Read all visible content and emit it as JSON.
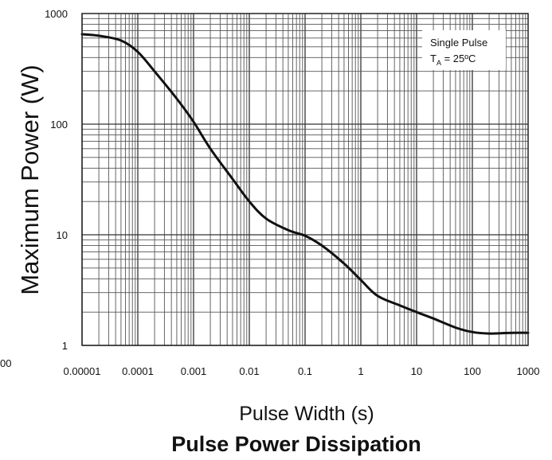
{
  "chart_data": {
    "type": "line",
    "title": "Pulse Power Dissipation",
    "xlabel": "Pulse Width (s)",
    "ylabel": "Maximum Power (W)",
    "x_scale": "log",
    "y_scale": "log",
    "xlim": [
      1e-05,
      1000
    ],
    "ylim": [
      1,
      1000
    ],
    "grid": true,
    "x_tick_labels": [
      "0.00001",
      "0.0001",
      "0.001",
      "0.01",
      "0.1",
      "1",
      "10",
      "100",
      "1000"
    ],
    "y_tick_labels": [
      "1",
      "10",
      "100",
      "1000"
    ],
    "edge_label_left": "00",
    "annotation": {
      "line1": "Single Pulse",
      "line2_main": "T",
      "line2_sub": "A",
      "line2_rest": " = 25ºC"
    },
    "series": [
      {
        "color": "#111111",
        "x": [
          1e-05,
          2e-05,
          5e-05,
          0.0001,
          0.0002,
          0.0005,
          0.001,
          0.002,
          0.005,
          0.01,
          0.02,
          0.05,
          0.1,
          0.2,
          0.5,
          1,
          2,
          5,
          10,
          20,
          50,
          100,
          200,
          500,
          1000
        ],
        "y": [
          650,
          630,
          570,
          450,
          300,
          170,
          105,
          60,
          32,
          20,
          14,
          11,
          9.8,
          8,
          5.5,
          3.9,
          2.8,
          2.3,
          2.0,
          1.75,
          1.45,
          1.32,
          1.28,
          1.3,
          1.3
        ]
      }
    ]
  }
}
